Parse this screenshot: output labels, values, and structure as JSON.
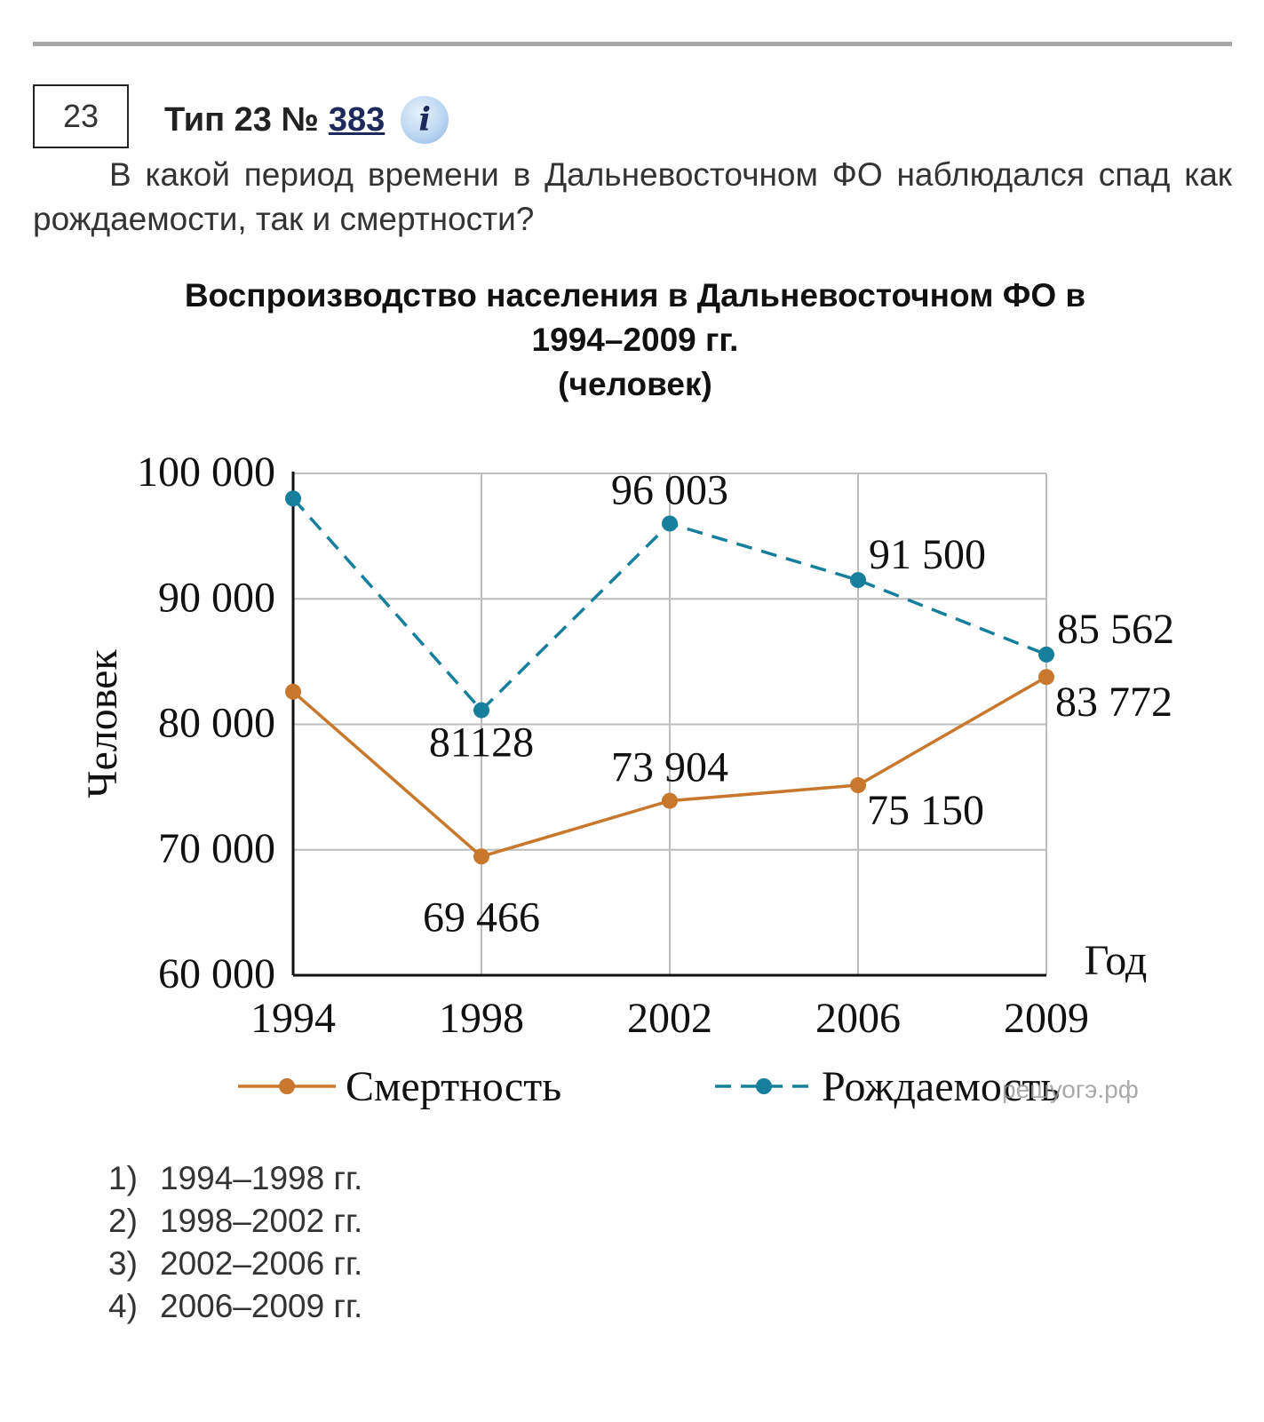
{
  "task": {
    "number": "23",
    "type_label": "Тип 23 №",
    "id": "383",
    "info_icon": "i"
  },
  "question": "В какой период времени в Дальневосточном ФО наблюдался спад как рождаемости, так и смертности?",
  "chart_title": {
    "line1": "Воспроизводство населения в Дальневосточном ФО в",
    "line2": "1994–2009 гг.",
    "line3": "(человек)"
  },
  "chart_data": {
    "type": "line",
    "x": [
      "1994",
      "1998",
      "2002",
      "2006",
      "2009"
    ],
    "ylabel": "Человек",
    "xlabel": "Год",
    "ylim": [
      60000,
      100000
    ],
    "yticks": [
      60000,
      70000,
      80000,
      90000,
      100000
    ],
    "ytick_labels": [
      "60 000",
      "70 000",
      "80 000",
      "90 000",
      "100 000"
    ],
    "grid": true,
    "legend_position": "bottom",
    "series": [
      {
        "name": "Смертность",
        "style": "solid",
        "color": "#c8782d",
        "values": [
          82600,
          69466,
          73904,
          75150,
          83772
        ],
        "data_labels": [
          "",
          "69 466",
          "73 904",
          "75 150",
          "83 772"
        ]
      },
      {
        "name": "Рождаемость",
        "style": "dashed",
        "color": "#16809c",
        "values": [
          98000,
          81128,
          96003,
          91500,
          85562
        ],
        "data_labels": [
          "",
          "81128",
          "96 003",
          "91 500",
          "85 562"
        ]
      }
    ],
    "watermark": "решуогэ.рф"
  },
  "answers": [
    {
      "n": "1)",
      "text": "1994–1998 гг."
    },
    {
      "n": "2)",
      "text": "1998–2002 гг."
    },
    {
      "n": "3)",
      "text": "2002–2006 гг."
    },
    {
      "n": "4)",
      "text": "2006–2009 гг."
    }
  ]
}
